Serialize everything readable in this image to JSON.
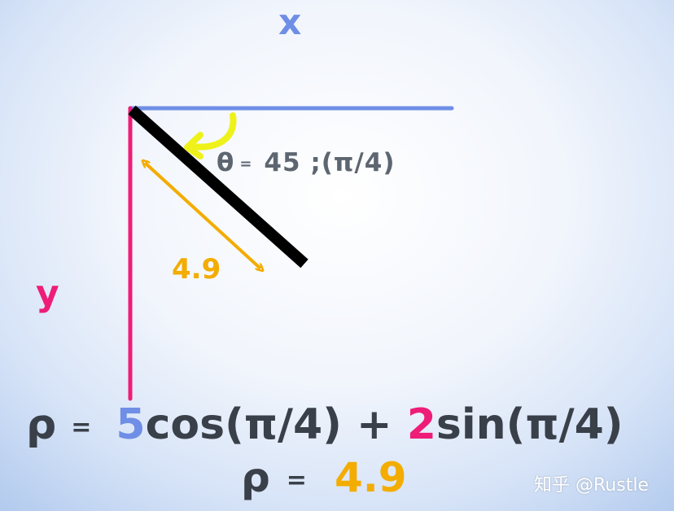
{
  "diagram": {
    "x_axis_label": "x",
    "y_axis_label": "y",
    "theta_symbol": "θ",
    "theta_equals": "=",
    "theta_value": "45 ;(π/4)",
    "length_label": "4.9"
  },
  "equations": {
    "rho_symbol": "ρ",
    "equals": "=",
    "x_coef": "5",
    "cos_term": "cos(π/4)",
    "plus": "+",
    "y_coef": "2",
    "sin_term": "sin(π/4)",
    "rho_value": "4.9"
  },
  "watermark": "知乎 @Rustle",
  "colors": {
    "x_axis": "#6f8ee6",
    "y_axis": "#ee1d78",
    "line": "#000000",
    "length_arrow": "#f3ac00",
    "angle_arrow": "#eef21a",
    "text": "#3a4049"
  }
}
